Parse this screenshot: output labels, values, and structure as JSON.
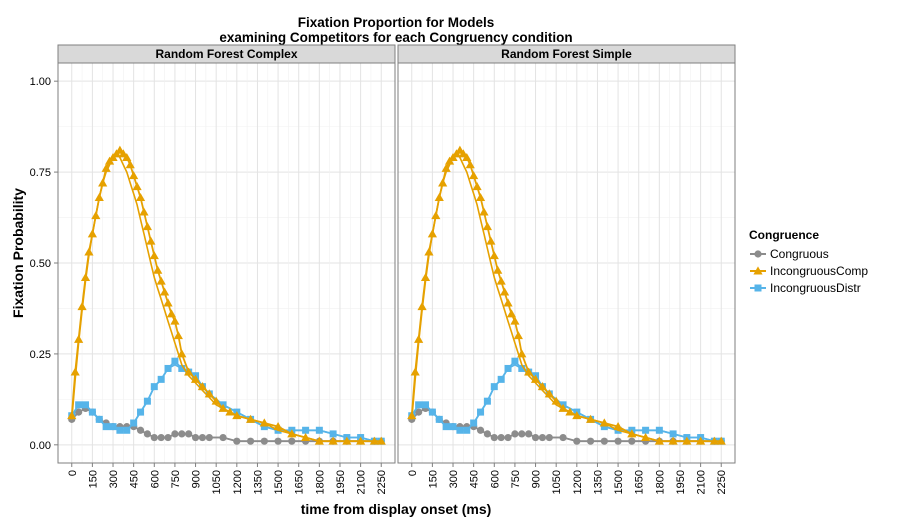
{
  "chart_data": {
    "type": "line",
    "title": "Fixation Proportion for Models",
    "subtitle": "examining Competitors for each Congruency condition",
    "xlabel": "time from display onset (ms)",
    "ylabel": "Fixation Probability",
    "xlim": [
      -100,
      2350
    ],
    "ylim": [
      -0.05,
      1.05
    ],
    "x_ticks": [
      0,
      150,
      300,
      450,
      600,
      750,
      900,
      1050,
      1200,
      1350,
      1500,
      1650,
      1800,
      1950,
      2100,
      2250
    ],
    "y_ticks": [
      0.0,
      0.25,
      0.5,
      0.75,
      1.0
    ],
    "y_tick_labels": [
      "0.00",
      "0.25",
      "0.50",
      "0.75",
      "1.00"
    ],
    "grid": true,
    "legend_position": "right",
    "legend_title": "Congruence",
    "panels": [
      {
        "strip": "Random Forest Complex",
        "series": [
          {
            "name": "Congruous",
            "color": "#8c8c8c",
            "marker": "circle",
            "x": [
              0,
              50,
              100,
              150,
              200,
              250,
              300,
              350,
              400,
              450,
              500,
              550,
              600,
              650,
              700,
              750,
              800,
              850,
              900,
              950,
              1000,
              1100,
              1200,
              1300,
              1400,
              1500,
              1600,
              1700,
              1800,
              1900,
              2000,
              2100,
              2200,
              2250
            ],
            "y": [
              0.07,
              0.09,
              0.1,
              0.09,
              0.07,
              0.06,
              0.05,
              0.05,
              0.05,
              0.05,
              0.04,
              0.03,
              0.02,
              0.02,
              0.02,
              0.03,
              0.03,
              0.03,
              0.02,
              0.02,
              0.02,
              0.02,
              0.01,
              0.01,
              0.01,
              0.01,
              0.01,
              0.01,
              0.01,
              0.01,
              0.01,
              0.01,
              0.01,
              0.01
            ],
            "fit": [
              0.07,
              0.09,
              0.1,
              0.09,
              0.07,
              0.06,
              0.05,
              0.05,
              0.05,
              0.05,
              0.04,
              0.03,
              0.02,
              0.02,
              0.02,
              0.03,
              0.03,
              0.03,
              0.02,
              0.02,
              0.02,
              0.02,
              0.01,
              0.01,
              0.01,
              0.01,
              0.01,
              0.01,
              0.01,
              0.01,
              0.01,
              0.01,
              0.01,
              0.01
            ]
          },
          {
            "name": "IncongruousComp",
            "color": "#e6a100",
            "marker": "triangle",
            "x": [
              0,
              25,
              50,
              75,
              100,
              125,
              150,
              175,
              200,
              225,
              250,
              275,
              300,
              325,
              350,
              375,
              400,
              425,
              450,
              475,
              500,
              525,
              550,
              575,
              600,
              625,
              650,
              675,
              700,
              725,
              750,
              775,
              800,
              850,
              900,
              950,
              1000,
              1050,
              1100,
              1150,
              1200,
              1300,
              1400,
              1500,
              1600,
              1700,
              1800,
              1900,
              2000,
              2100,
              2200,
              2250
            ],
            "y": [
              0.08,
              0.2,
              0.29,
              0.38,
              0.46,
              0.53,
              0.58,
              0.63,
              0.68,
              0.72,
              0.76,
              0.78,
              0.79,
              0.8,
              0.81,
              0.8,
              0.79,
              0.77,
              0.74,
              0.71,
              0.68,
              0.64,
              0.6,
              0.56,
              0.52,
              0.48,
              0.45,
              0.42,
              0.39,
              0.36,
              0.34,
              0.3,
              0.25,
              0.2,
              0.18,
              0.16,
              0.14,
              0.12,
              0.1,
              0.09,
              0.08,
              0.07,
              0.06,
              0.05,
              0.03,
              0.02,
              0.01,
              0.01,
              0.01,
              0.01,
              0.01,
              0.01
            ],
            "fit": [
              0.07,
              0.18,
              0.28,
              0.37,
              0.45,
              0.52,
              0.58,
              0.63,
              0.68,
              0.72,
              0.75,
              0.77,
              0.79,
              0.8,
              0.79,
              0.77,
              0.75,
              0.72,
              0.69,
              0.66,
              0.62,
              0.58,
              0.54,
              0.5,
              0.46,
              0.43,
              0.4,
              0.37,
              0.34,
              0.31,
              0.28,
              0.25,
              0.22,
              0.19,
              0.17,
              0.15,
              0.13,
              0.11,
              0.1,
              0.09,
              0.08,
              0.07,
              0.06,
              0.04,
              0.03,
              0.02,
              0.01,
              0.01,
              0.01,
              0.01,
              0.01,
              0.01
            ]
          },
          {
            "name": "IncongruousDistr",
            "color": "#56b4e9",
            "marker": "square",
            "x": [
              0,
              50,
              100,
              150,
              200,
              250,
              300,
              350,
              400,
              450,
              500,
              550,
              600,
              650,
              700,
              750,
              800,
              850,
              900,
              950,
              1000,
              1100,
              1200,
              1300,
              1400,
              1500,
              1600,
              1700,
              1800,
              1900,
              2000,
              2100,
              2200,
              2250
            ],
            "y": [
              0.08,
              0.11,
              0.11,
              0.09,
              0.07,
              0.05,
              0.05,
              0.04,
              0.04,
              0.06,
              0.09,
              0.12,
              0.16,
              0.18,
              0.21,
              0.23,
              0.21,
              0.2,
              0.19,
              0.16,
              0.14,
              0.11,
              0.09,
              0.07,
              0.05,
              0.04,
              0.04,
              0.04,
              0.04,
              0.03,
              0.02,
              0.02,
              0.01,
              0.01
            ],
            "fit": [
              0.08,
              0.11,
              0.11,
              0.09,
              0.07,
              0.05,
              0.05,
              0.04,
              0.04,
              0.06,
              0.09,
              0.12,
              0.16,
              0.18,
              0.21,
              0.22,
              0.21,
              0.2,
              0.19,
              0.16,
              0.14,
              0.11,
              0.09,
              0.07,
              0.05,
              0.04,
              0.04,
              0.04,
              0.04,
              0.03,
              0.02,
              0.02,
              0.01,
              0.01
            ]
          }
        ]
      },
      {
        "strip": "Random Forest Simple",
        "series": [
          {
            "name": "Congruous",
            "color": "#8c8c8c",
            "marker": "circle",
            "x": [
              0,
              50,
              100,
              150,
              200,
              250,
              300,
              350,
              400,
              450,
              500,
              550,
              600,
              650,
              700,
              750,
              800,
              850,
              900,
              950,
              1000,
              1100,
              1200,
              1300,
              1400,
              1500,
              1600,
              1700,
              1800,
              1900,
              2000,
              2100,
              2200,
              2250
            ],
            "y": [
              0.07,
              0.09,
              0.1,
              0.09,
              0.07,
              0.06,
              0.05,
              0.05,
              0.05,
              0.05,
              0.04,
              0.03,
              0.02,
              0.02,
              0.02,
              0.03,
              0.03,
              0.03,
              0.02,
              0.02,
              0.02,
              0.02,
              0.01,
              0.01,
              0.01,
              0.01,
              0.01,
              0.01,
              0.01,
              0.01,
              0.01,
              0.01,
              0.01,
              0.01
            ],
            "fit": [
              0.07,
              0.09,
              0.1,
              0.09,
              0.07,
              0.06,
              0.05,
              0.05,
              0.05,
              0.05,
              0.04,
              0.03,
              0.02,
              0.02,
              0.02,
              0.03,
              0.03,
              0.03,
              0.02,
              0.02,
              0.02,
              0.02,
              0.01,
              0.01,
              0.01,
              0.01,
              0.01,
              0.01,
              0.01,
              0.01,
              0.01,
              0.01,
              0.01,
              0.01
            ]
          },
          {
            "name": "IncongruousComp",
            "color": "#e6a100",
            "marker": "triangle",
            "x": [
              0,
              25,
              50,
              75,
              100,
              125,
              150,
              175,
              200,
              225,
              250,
              275,
              300,
              325,
              350,
              375,
              400,
              425,
              450,
              475,
              500,
              525,
              550,
              575,
              600,
              625,
              650,
              675,
              700,
              725,
              750,
              775,
              800,
              850,
              900,
              950,
              1000,
              1050,
              1100,
              1150,
              1200,
              1300,
              1400,
              1500,
              1600,
              1700,
              1800,
              1900,
              2000,
              2100,
              2200,
              2250
            ],
            "y": [
              0.08,
              0.2,
              0.29,
              0.38,
              0.46,
              0.53,
              0.58,
              0.63,
              0.68,
              0.72,
              0.76,
              0.78,
              0.79,
              0.8,
              0.81,
              0.8,
              0.79,
              0.77,
              0.74,
              0.71,
              0.68,
              0.64,
              0.6,
              0.56,
              0.52,
              0.48,
              0.45,
              0.42,
              0.39,
              0.36,
              0.34,
              0.3,
              0.25,
              0.2,
              0.18,
              0.16,
              0.14,
              0.12,
              0.1,
              0.09,
              0.08,
              0.07,
              0.06,
              0.05,
              0.03,
              0.02,
              0.01,
              0.01,
              0.01,
              0.01,
              0.01,
              0.01
            ],
            "fit": [
              0.07,
              0.18,
              0.28,
              0.37,
              0.45,
              0.52,
              0.58,
              0.63,
              0.68,
              0.72,
              0.75,
              0.77,
              0.79,
              0.8,
              0.79,
              0.77,
              0.75,
              0.72,
              0.69,
              0.66,
              0.62,
              0.58,
              0.54,
              0.5,
              0.46,
              0.43,
              0.4,
              0.37,
              0.34,
              0.31,
              0.28,
              0.25,
              0.22,
              0.19,
              0.17,
              0.15,
              0.13,
              0.11,
              0.1,
              0.09,
              0.08,
              0.07,
              0.06,
              0.04,
              0.03,
              0.02,
              0.01,
              0.01,
              0.01,
              0.01,
              0.01,
              0.01
            ]
          },
          {
            "name": "IncongruousDistr",
            "color": "#56b4e9",
            "marker": "square",
            "x": [
              0,
              50,
              100,
              150,
              200,
              250,
              300,
              350,
              400,
              450,
              500,
              550,
              600,
              650,
              700,
              750,
              800,
              850,
              900,
              950,
              1000,
              1100,
              1200,
              1300,
              1400,
              1500,
              1600,
              1700,
              1800,
              1900,
              2000,
              2100,
              2200,
              2250
            ],
            "y": [
              0.08,
              0.11,
              0.11,
              0.09,
              0.07,
              0.05,
              0.05,
              0.04,
              0.04,
              0.06,
              0.09,
              0.12,
              0.16,
              0.18,
              0.21,
              0.23,
              0.21,
              0.2,
              0.19,
              0.16,
              0.14,
              0.11,
              0.09,
              0.07,
              0.05,
              0.04,
              0.04,
              0.04,
              0.04,
              0.03,
              0.02,
              0.02,
              0.01,
              0.01
            ],
            "fit": [
              0.08,
              0.11,
              0.11,
              0.09,
              0.07,
              0.05,
              0.05,
              0.04,
              0.04,
              0.06,
              0.09,
              0.12,
              0.16,
              0.18,
              0.21,
              0.22,
              0.21,
              0.2,
              0.19,
              0.16,
              0.14,
              0.11,
              0.09,
              0.07,
              0.05,
              0.04,
              0.04,
              0.04,
              0.04,
              0.03,
              0.02,
              0.02,
              0.01,
              0.01
            ]
          }
        ]
      }
    ]
  }
}
